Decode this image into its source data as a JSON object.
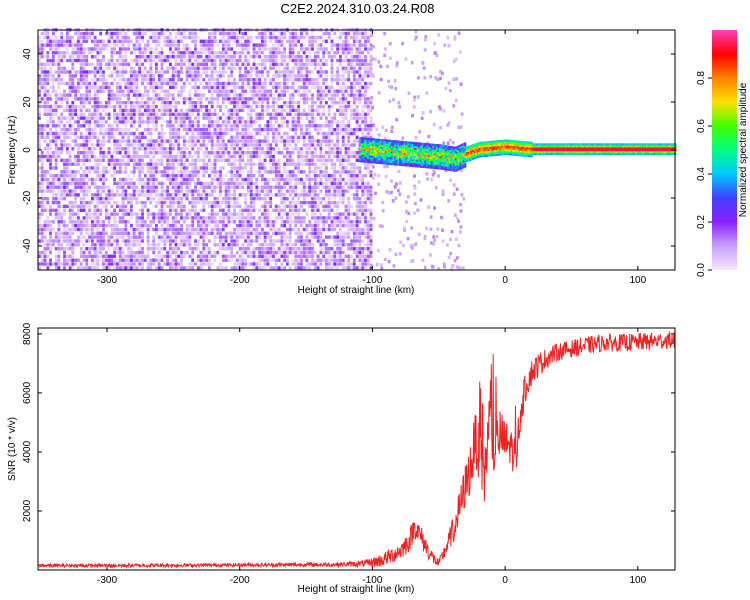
{
  "title": "C2E2.2024.310.03.24.R08",
  "chart_data": [
    {
      "type": "heatmap",
      "xlabel": "Height of straight line (km)",
      "ylabel": "Frequency (Hz)",
      "xlim": [
        -352,
        128
      ],
      "ylim": [
        -50,
        50
      ],
      "xticks": [
        -300,
        -200,
        -100,
        0,
        100
      ],
      "yticks": [
        -40,
        -20,
        0,
        20,
        40
      ],
      "colorbar": {
        "label": "Normalized spectral amplitude",
        "range": [
          0.0,
          1.0
        ],
        "ticks": [
          "0.0",
          "0.2",
          "0.4",
          "0.6",
          "0.8"
        ],
        "colors": [
          "#f4e6ff",
          "#c8a0ff",
          "#8a20ff",
          "#4040ff",
          "#00c8ff",
          "#00ff80",
          "#40ff00",
          "#ffe000",
          "#ff8000",
          "#ff0000",
          "#ff40c0"
        ]
      },
      "features": [
        {
          "description": "broadband noise region",
          "x_range": [
            -352,
            -102
          ],
          "freq_range": [
            -50,
            50
          ],
          "amplitude_range": [
            0.05,
            0.25
          ]
        },
        {
          "description": "signal line",
          "points": [
            [
              -110,
              0
            ],
            [
              -90,
              -1
            ],
            [
              -70,
              -2
            ],
            [
              -50,
              -3
            ],
            [
              -38,
              -4
            ],
            [
              -30,
              -2
            ],
            [
              -20,
              0
            ],
            [
              -10,
              0.5
            ],
            [
              0,
              1
            ],
            [
              10,
              0.5
            ],
            [
              20,
              0
            ],
            [
              128,
              0
            ]
          ],
          "amplitude_range": [
            0.3,
            0.95
          ]
        }
      ]
    },
    {
      "type": "line",
      "xlabel": "Height of straight line (km)",
      "ylabel": "SNR (10 * v/v)",
      "xlim": [
        -352,
        128
      ],
      "ylim": [
        0,
        8200
      ],
      "xticks": [
        -300,
        -200,
        -100,
        0,
        100
      ],
      "yticks": [
        2000,
        4000,
        6000,
        8000
      ],
      "series": [
        {
          "color": "#ee2222",
          "x": [
            -352,
            -300,
            -250,
            -200,
            -150,
            -120,
            -105,
            -95,
            -85,
            -78,
            -72,
            -68,
            -62,
            -56,
            -50,
            -44,
            -38,
            -32,
            -26,
            -22,
            -16,
            -12,
            -8,
            -4,
            0,
            4,
            8,
            12,
            16,
            20,
            26,
            32,
            40,
            50,
            60,
            75,
            90,
            110,
            128
          ],
          "y": [
            150,
            150,
            160,
            170,
            180,
            190,
            220,
            300,
            500,
            700,
            1000,
            1500,
            1000,
            500,
            200,
            800,
            1500,
            2500,
            3500,
            4500,
            3000,
            5000,
            4000,
            4600,
            4300,
            4200,
            3800,
            5500,
            6300,
            6700,
            7000,
            7200,
            7400,
            7500,
            7600,
            7700,
            7700,
            7750,
            7800
          ],
          "noise": [
            60,
            60,
            60,
            60,
            70,
            80,
            120,
            220,
            280,
            330,
            380,
            420,
            380,
            250,
            150,
            300,
            500,
            700,
            900,
            1000,
            1100,
            1100,
            1000,
            900,
            800,
            700,
            700,
            600,
            500,
            450,
            400,
            350,
            300,
            300,
            300,
            300,
            300,
            300,
            300
          ]
        }
      ]
    }
  ]
}
